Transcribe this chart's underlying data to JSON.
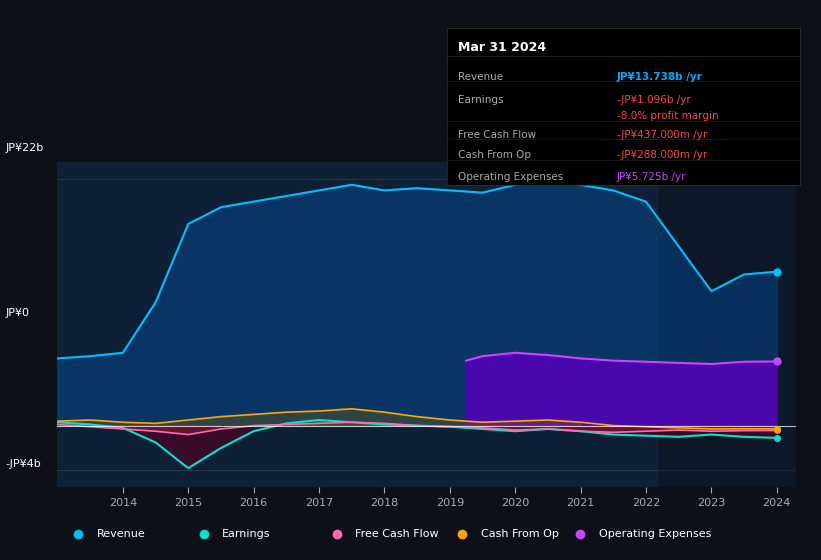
{
  "bg_color": "#0d1117",
  "chart_bg": "#0d1b2a",
  "plot_bg": "#0e1e30",
  "title_box": {
    "date": "Mar 31 2024",
    "rows": [
      {
        "label": "Revenue",
        "value": "JP¥13.738b /yr",
        "value_color": "#00aaff"
      },
      {
        "label": "Earnings",
        "value": "-JP¥1.096b /yr",
        "value_color": "#ff4444"
      },
      {
        "label": "",
        "value": "-8.0% profit margin",
        "value_color": "#ff4444"
      },
      {
        "label": "Free Cash Flow",
        "value": "-JP¥437.000m /yr",
        "value_color": "#ff4444"
      },
      {
        "label": "Cash From Op",
        "value": "-JP¥288.000m /yr",
        "value_color": "#ff4444"
      },
      {
        "label": "Operating Expenses",
        "value": "JP¥5.725b /yr",
        "value_color": "#cc44ff"
      }
    ]
  },
  "ylabel_top": "JP¥22b",
  "ylabel_zero": "JP¥0",
  "ylabel_bot": "-JP¥4b",
  "x_ticks": [
    "2014",
    "2015",
    "2016",
    "2017",
    "2018",
    "2019",
    "2020",
    "2021",
    "2022",
    "2023",
    "2024"
  ],
  "legend": [
    {
      "label": "Revenue",
      "color": "#00bfff"
    },
    {
      "label": "Earnings",
      "color": "#00e5cc"
    },
    {
      "label": "Free Cash Flow",
      "color": "#ff69b4"
    },
    {
      "label": "Cash From Op",
      "color": "#ffa500"
    },
    {
      "label": "Operating Expenses",
      "color": "#cc44ff"
    }
  ],
  "series": {
    "x": [
      2013.0,
      2013.5,
      2014.0,
      2014.5,
      2015.0,
      2015.5,
      2016.0,
      2016.5,
      2017.0,
      2017.5,
      2018.0,
      2018.5,
      2019.0,
      2019.5,
      2020.0,
      2020.5,
      2021.0,
      2021.5,
      2022.0,
      2022.5,
      2023.0,
      2023.5,
      2024.0
    ],
    "revenue": [
      6.0,
      6.2,
      6.5,
      11.0,
      18.0,
      19.5,
      20.0,
      20.5,
      21.0,
      21.5,
      21.0,
      21.2,
      21.0,
      20.8,
      21.5,
      22.0,
      21.5,
      21.0,
      20.0,
      16.0,
      12.0,
      13.5,
      13.738
    ],
    "earnings": [
      0.3,
      0.1,
      -0.2,
      -1.5,
      -3.8,
      -2.0,
      -0.5,
      0.2,
      0.5,
      0.3,
      0.1,
      0.0,
      -0.1,
      -0.3,
      -0.5,
      -0.3,
      -0.5,
      -0.8,
      -0.9,
      -1.0,
      -0.8,
      -1.0,
      -1.096
    ],
    "free_cash_flow": [
      0.1,
      -0.1,
      -0.3,
      -0.5,
      -0.8,
      -0.3,
      0.0,
      0.1,
      0.2,
      0.3,
      0.2,
      0.0,
      -0.1,
      -0.2,
      -0.4,
      -0.3,
      -0.5,
      -0.6,
      -0.5,
      -0.4,
      -0.5,
      -0.45,
      -0.437
    ],
    "cash_from_op": [
      0.4,
      0.5,
      0.3,
      0.2,
      0.5,
      0.8,
      1.0,
      1.2,
      1.3,
      1.5,
      1.2,
      0.8,
      0.5,
      0.3,
      0.4,
      0.5,
      0.3,
      0.0,
      -0.1,
      -0.2,
      -0.3,
      -0.29,
      -0.288
    ],
    "op_expenses_x": [
      2019.25,
      2019.5,
      2020.0,
      2020.5,
      2021.0,
      2021.5,
      2022.0,
      2022.5,
      2023.0,
      2023.5,
      2024.0
    ],
    "op_expenses": [
      5.8,
      6.2,
      6.5,
      6.3,
      6.0,
      5.8,
      5.7,
      5.6,
      5.5,
      5.7,
      5.725
    ]
  }
}
